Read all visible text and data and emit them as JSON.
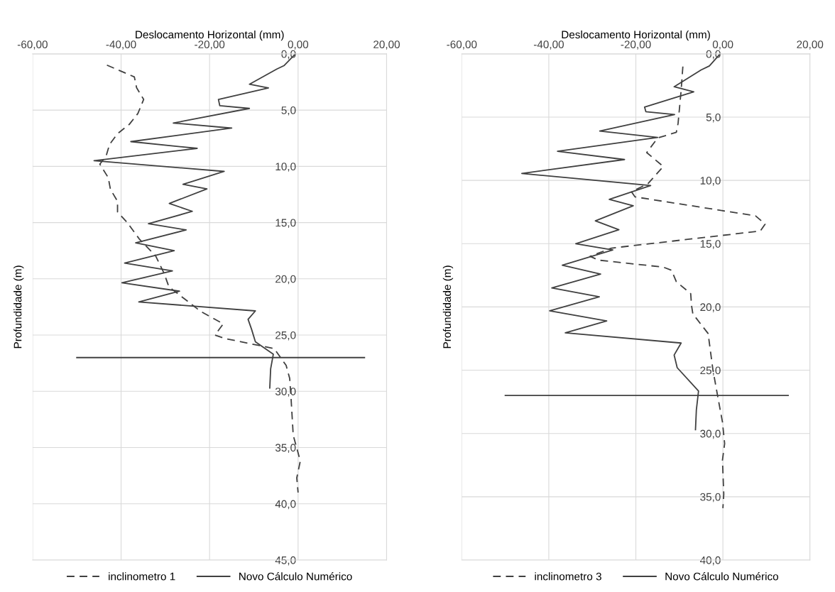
{
  "chart_data": [
    {
      "type": "line",
      "xlabel": "Deslocamento Horizontal (mm)",
      "ylabel": "Profundidade (m)",
      "xlim": [
        -60,
        20
      ],
      "ylim": [
        45,
        0
      ],
      "xticks": [
        {
          "value": -60,
          "label": "-60,00"
        },
        {
          "value": -40,
          "label": "-40,00"
        },
        {
          "value": -20,
          "label": "-20,00"
        },
        {
          "value": 0,
          "label": "0,00"
        },
        {
          "value": 20,
          "label": "20,00"
        }
      ],
      "yticks": [
        {
          "value": 0,
          "label": "0,0"
        },
        {
          "value": 5,
          "label": "5,0"
        },
        {
          "value": 10,
          "label": "10,0"
        },
        {
          "value": 15,
          "label": "15,0"
        },
        {
          "value": 20,
          "label": "20,0"
        },
        {
          "value": 25,
          "label": "25,0"
        },
        {
          "value": 30,
          "label": "30,0"
        },
        {
          "value": 35,
          "label": "35,0"
        },
        {
          "value": 40,
          "label": "40,0"
        },
        {
          "value": 45,
          "label": "45,0"
        }
      ],
      "grid": true,
      "legend": "bottom",
      "series": [
        {
          "name": "inclinometro 1",
          "color": "#404040",
          "line_style": "dashed",
          "x": [
            -43.2,
            -37.0,
            -36.5,
            -34.9,
            -36.2,
            -38.1,
            -40.8,
            -42.6,
            -43.4,
            -44.8,
            -42.9,
            -42.4,
            -40.8,
            -40.8,
            -38.6,
            -35.9,
            -32.2,
            -30.3,
            -29.2,
            -22.0,
            -16.9,
            -18.8,
            -16.6,
            -5.4,
            -2.7,
            -1.9,
            -1.6,
            -1.1,
            0.5,
            -0.3,
            0.0
          ],
          "values": [
            1.0,
            2.05,
            3.0,
            4.05,
            5.3,
            6.25,
            7.1,
            8.05,
            9.1,
            9.8,
            11.0,
            12.05,
            13.1,
            14.05,
            15.0,
            16.45,
            17.95,
            19.5,
            20.7,
            22.9,
            24.0,
            25.0,
            25.3,
            26.2,
            27.7,
            28.85,
            30.55,
            33.9,
            36.2,
            37.7,
            39.0
          ]
        },
        {
          "name": "Novo Cálculo Numérico",
          "color": "#404040",
          "line_style": "solid",
          "x": [
            -0.6,
            -3.2,
            -4.8,
            -11.0,
            -6.7,
            -18.0,
            -17.7,
            -11.0,
            -28.2,
            -15.0,
            -37.8,
            -22.8,
            -46.1,
            -16.7,
            -26.0,
            -20.6,
            -29.1,
            -23.9,
            -33.8,
            -25.3,
            -36.7,
            -28.0,
            -39.2,
            -28.4,
            -39.8,
            -26.8,
            -36.0,
            -9.65,
            -11.3,
            -10.5,
            -9.65,
            -5.6,
            -6.2,
            -6.4
          ],
          "values": [
            0.0,
            1.05,
            1.35,
            2.7,
            3.03,
            4.05,
            4.6,
            4.85,
            6.15,
            6.6,
            7.8,
            8.4,
            9.5,
            10.45,
            11.6,
            12.0,
            13.3,
            14.0,
            15.1,
            15.65,
            16.8,
            17.5,
            18.6,
            19.3,
            20.35,
            21.1,
            22.05,
            22.85,
            23.6,
            24.5,
            25.6,
            26.7,
            28.0,
            29.7
          ]
        },
        {
          "color": "#404040",
          "line_style": "solid",
          "x": [
            -50,
            15
          ],
          "values": [
            27.0,
            27.0
          ]
        }
      ]
    },
    {
      "type": "line",
      "xlabel": "Deslocamento Horizontal (mm)",
      "ylabel": "Profundidade (m)",
      "xlim": [
        -60,
        20
      ],
      "ylim": [
        40,
        0
      ],
      "xticks": [
        {
          "value": -60,
          "label": "-60,00"
        },
        {
          "value": -40,
          "label": "-40,00"
        },
        {
          "value": -20,
          "label": "-20,00"
        },
        {
          "value": 0,
          "label": "0,00"
        },
        {
          "value": 20,
          "label": "20,00"
        }
      ],
      "yticks": [
        {
          "value": 0,
          "label": "0,0"
        },
        {
          "value": 5,
          "label": "5,0"
        },
        {
          "value": 10,
          "label": "10,0"
        },
        {
          "value": 15,
          "label": "15,0"
        },
        {
          "value": 20,
          "label": "20,0"
        },
        {
          "value": 25,
          "label": "25,0"
        },
        {
          "value": 30,
          "label": "30,0"
        },
        {
          "value": 35,
          "label": "35,0"
        },
        {
          "value": 40,
          "label": "40,0"
        }
      ],
      "grid": true,
      "legend": "bottom",
      "series": [
        {
          "name": "inclinometro 3",
          "color": "#404040",
          "line_style": "dashed",
          "x": [
            -9.2,
            -9.6,
            -10.3,
            -10.7,
            -15.0,
            -17.5,
            -13.7,
            -17.2,
            -21.0,
            -20.2,
            7.5,
            9.7,
            8.6,
            -25.6,
            -30.5,
            -28.6,
            -13.7,
            -11.8,
            -10.7,
            -7.4,
            -7.2,
            -6.9,
            -3.4,
            -2.3,
            -1.2,
            -0.1,
            0.4,
            -0.1,
            0.2,
            0.0
          ],
          "values": [
            1.0,
            2.9,
            5.5,
            6.2,
            6.65,
            7.8,
            8.9,
            10.25,
            10.9,
            11.3,
            12.8,
            13.45,
            14.0,
            15.35,
            16.0,
            16.3,
            16.85,
            17.1,
            18.0,
            18.95,
            19.9,
            20.55,
            22.1,
            24.95,
            27.05,
            29.1,
            30.8,
            32.1,
            34.8,
            35.9
          ]
        },
        {
          "name": "Novo Cálculo Numérico",
          "color": "#404040",
          "line_style": "solid",
          "x": [
            -0.75,
            -3.1,
            -5.0,
            -11.2,
            -6.7,
            -18.0,
            -17.7,
            -11.1,
            -28.3,
            -15.0,
            -38.0,
            -22.6,
            -46.2,
            -16.6,
            -26.1,
            -20.6,
            -29.3,
            -23.9,
            -33.8,
            -25.3,
            -36.9,
            -28.1,
            -39.3,
            -28.4,
            -39.8,
            -26.7,
            -36.2,
            -9.6,
            -11.2,
            -10.5,
            -5.6,
            -6.1,
            -6.3
          ],
          "values": [
            0.04,
            0.95,
            1.27,
            2.6,
            3.0,
            4.2,
            4.57,
            4.8,
            6.1,
            6.6,
            7.7,
            8.35,
            9.45,
            10.4,
            11.5,
            12.0,
            13.2,
            13.9,
            15.0,
            15.5,
            16.7,
            17.4,
            18.5,
            19.2,
            20.3,
            21.1,
            22.05,
            22.85,
            23.8,
            24.8,
            26.65,
            28.15,
            29.7
          ]
        },
        {
          "color": "#404040",
          "line_style": "solid",
          "x": [
            -50,
            15
          ],
          "values": [
            27.0,
            27.0
          ]
        }
      ]
    }
  ]
}
